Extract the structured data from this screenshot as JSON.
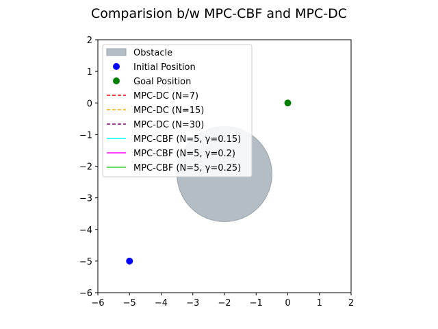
{
  "chart_data": {
    "type": "scatter",
    "title": "Comparision b/w MPC-CBF and MPC-DC",
    "xlabel": "",
    "ylabel": "",
    "xlim": [
      -6,
      2
    ],
    "ylim": [
      -6,
      2
    ],
    "xticks": [
      "−6",
      "−5",
      "−4",
      "−3",
      "−2",
      "−1",
      "0",
      "1",
      "2"
    ],
    "yticks": [
      "2",
      "1",
      "0",
      "−1",
      "−2",
      "−3",
      "−4",
      "−5",
      "−6"
    ],
    "grid": false,
    "legend_position": "upper-left",
    "obstacle": {
      "center": [
        -2,
        -2.25
      ],
      "radius": 1.5,
      "color": "#b5bdc4"
    },
    "points": [
      {
        "name": "Initial Position",
        "x": -5,
        "y": -5,
        "color": "#0000ff"
      },
      {
        "name": "Goal Position",
        "x": 0,
        "y": 0,
        "color": "#008000"
      }
    ],
    "series": [
      {
        "name": "MPC-DC (N=7)",
        "color": "#ff0000",
        "style": "dashed",
        "values": []
      },
      {
        "name": "MPC-DC (N=15)",
        "color": "#ffa500",
        "style": "dashed",
        "values": []
      },
      {
        "name": "MPC-DC (N=30)",
        "color": "#800080",
        "style": "dashed",
        "values": []
      },
      {
        "name": "MPC-CBF (N=5, γ=0.15)",
        "color": "#00ffff",
        "style": "solid",
        "values": []
      },
      {
        "name": "MPC-CBF (N=5, γ=0.2)",
        "color": "#ff00ff",
        "style": "solid",
        "values": []
      },
      {
        "name": "MPC-CBF (N=5, γ=0.25)",
        "color": "#32cd32",
        "style": "solid",
        "values": []
      }
    ],
    "legend": [
      {
        "label": "Obstacle",
        "kind": "patch",
        "color": "#b5bdc4"
      },
      {
        "label": "Initial Position",
        "kind": "marker",
        "color": "#0000ff"
      },
      {
        "label": "Goal Position",
        "kind": "marker",
        "color": "#008000"
      },
      {
        "label": "MPC-DC (N=7)",
        "kind": "dashed",
        "color": "#ff0000"
      },
      {
        "label": "MPC-DC (N=15)",
        "kind": "dashed",
        "color": "#ffa500"
      },
      {
        "label": "MPC-DC (N=30)",
        "kind": "dashed",
        "color": "#800080"
      },
      {
        "label": "MPC-CBF (N=5, γ=0.15)",
        "kind": "solid",
        "color": "#00ffff"
      },
      {
        "label": "MPC-CBF (N=5, γ=0.2)",
        "kind": "solid",
        "color": "#ff00ff"
      },
      {
        "label": "MPC-CBF (N=5, γ=0.25)",
        "kind": "solid",
        "color": "#32cd32"
      }
    ]
  }
}
